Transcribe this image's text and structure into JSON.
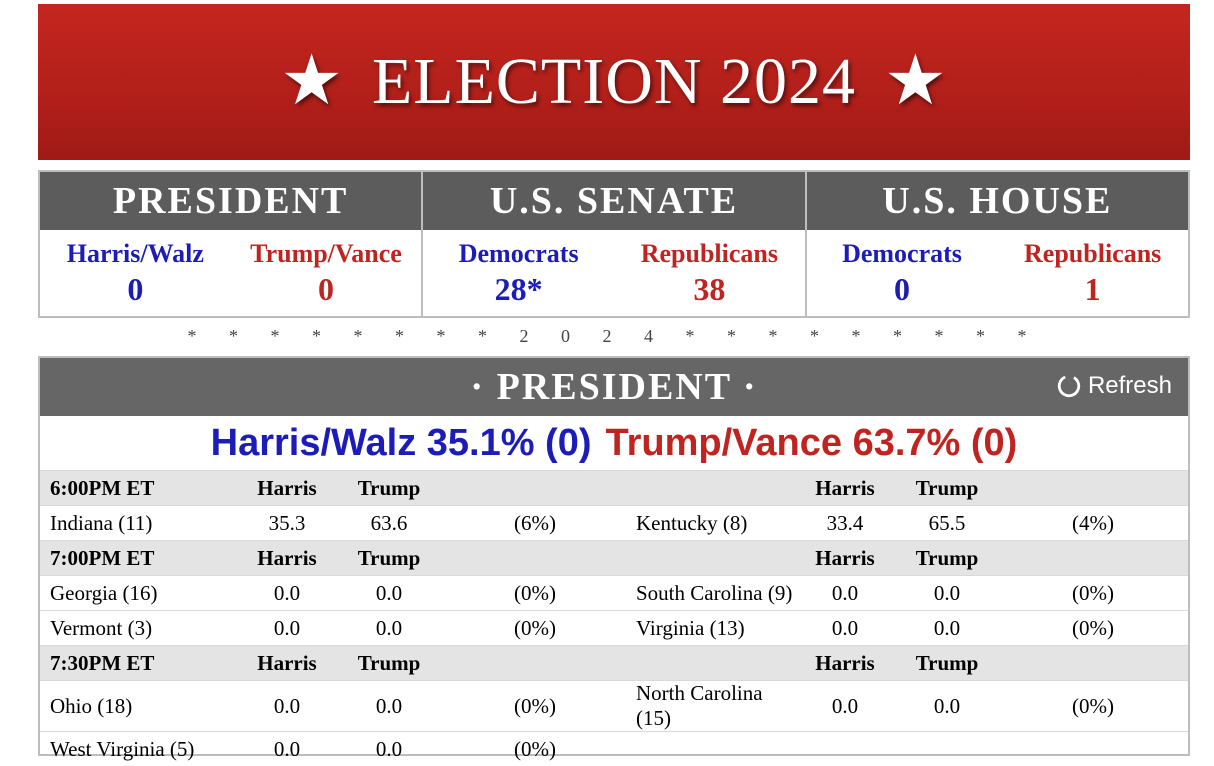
{
  "banner": {
    "star_left": "★",
    "title": "ELECTION 2024",
    "star_right": "★"
  },
  "summary": [
    {
      "title": "PRESIDENT",
      "left": {
        "label": "Harris/Walz",
        "value": "0"
      },
      "right": {
        "label": "Trump/Vance",
        "value": "0"
      }
    },
    {
      "title": "U.S. SENATE",
      "left": {
        "label": "Democrats",
        "value": "28*"
      },
      "right": {
        "label": "Republicans",
        "value": "38"
      }
    },
    {
      "title": "U.S. HOUSE",
      "left": {
        "label": "Democrats",
        "value": "0"
      },
      "right": {
        "label": "Republicans",
        "value": "1"
      }
    }
  ],
  "divider": "* * * * * * * * 2 0 2 4 * * * * * * * * *",
  "president_panel": {
    "title": "· PRESIDENT ·",
    "refresh_label": "Refresh",
    "totals": {
      "dem": "Harris/Walz 35.1% (0)",
      "rep": "Trump/Vance 63.7% (0)"
    },
    "col_harris": "Harris",
    "col_trump": "Trump",
    "groups": [
      {
        "time": "6:00PM ET",
        "rows": [
          {
            "left": {
              "state": "Indiana (11)",
              "harris": "35.3",
              "trump": "63.6",
              "pct": "(6%)"
            },
            "right": {
              "state": "Kentucky (8)",
              "harris": "33.4",
              "trump": "65.5",
              "pct": "(4%)"
            }
          }
        ]
      },
      {
        "time": "7:00PM ET",
        "rows": [
          {
            "left": {
              "state": "Georgia (16)",
              "harris": "0.0",
              "trump": "0.0",
              "pct": "(0%)"
            },
            "right": {
              "state": "South Carolina (9)",
              "harris": "0.0",
              "trump": "0.0",
              "pct": "(0%)"
            }
          },
          {
            "left": {
              "state": "Vermont (3)",
              "harris": "0.0",
              "trump": "0.0",
              "pct": "(0%)"
            },
            "right": {
              "state": "Virginia (13)",
              "harris": "0.0",
              "trump": "0.0",
              "pct": "(0%)"
            }
          }
        ]
      },
      {
        "time": "7:30PM ET",
        "rows": [
          {
            "left": {
              "state": "Ohio (18)",
              "harris": "0.0",
              "trump": "0.0",
              "pct": "(0%)"
            },
            "right": {
              "state": "North Carolina (15)",
              "harris": "0.0",
              "trump": "0.0",
              "pct": "(0%)"
            }
          },
          {
            "left": {
              "state": "West Virginia (5)",
              "harris": "0.0",
              "trump": "0.0",
              "pct": "(0%)"
            },
            "right": null
          }
        ]
      }
    ]
  },
  "colors": {
    "banner_red": "#b21f1a",
    "dem_blue": "#1c1cb8",
    "rep_red": "#c02420",
    "header_gray": "#5c5c5c"
  }
}
